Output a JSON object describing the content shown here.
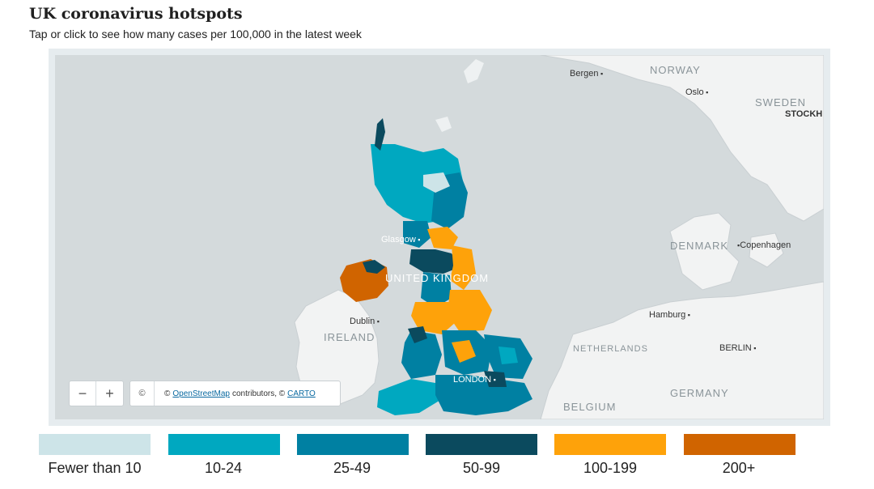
{
  "header": {
    "title": "UK coronavirus hotspots",
    "subtitle": "Tap or click to see how many cases per 100,000 in the latest week"
  },
  "map": {
    "country_labels": {
      "norway": "NORWAY",
      "sweden": "SWEDEN",
      "denmark": "DENMARK",
      "ireland": "IRELAND",
      "netherlands": "NETHERLANDS",
      "belgium": "BELGIUM",
      "germany": "GERMANY",
      "uk": "UNITED KINGDOM"
    },
    "city_labels": {
      "bergen": "Bergen",
      "oslo": "Oslo",
      "stockholm": "STOCKH",
      "copenhagen": "Copenhagen",
      "hamburg": "Hamburg",
      "berlin": "BERLIN",
      "dublin": "Dublin",
      "glasgow": "Glasgow",
      "london": "LONDON"
    },
    "zoom": {
      "out": "−",
      "in": "+"
    },
    "attribution": {
      "toggle": "©",
      "prefix": "©",
      "osm_link": "OpenStreetMap",
      "middle": "contributors, ©",
      "carto_link": "CARTO"
    }
  },
  "legend": [
    {
      "label": "Fewer than 10",
      "color": "#cde4e8"
    },
    {
      "label": "10-24",
      "color": "#00a8c0"
    },
    {
      "label": "25-49",
      "color": "#0080a2"
    },
    {
      "label": "50-99",
      "color": "#0b4a5e"
    },
    {
      "label": "100-199",
      "color": "#fea20a"
    },
    {
      "label": "200+",
      "color": "#d06400"
    }
  ]
}
